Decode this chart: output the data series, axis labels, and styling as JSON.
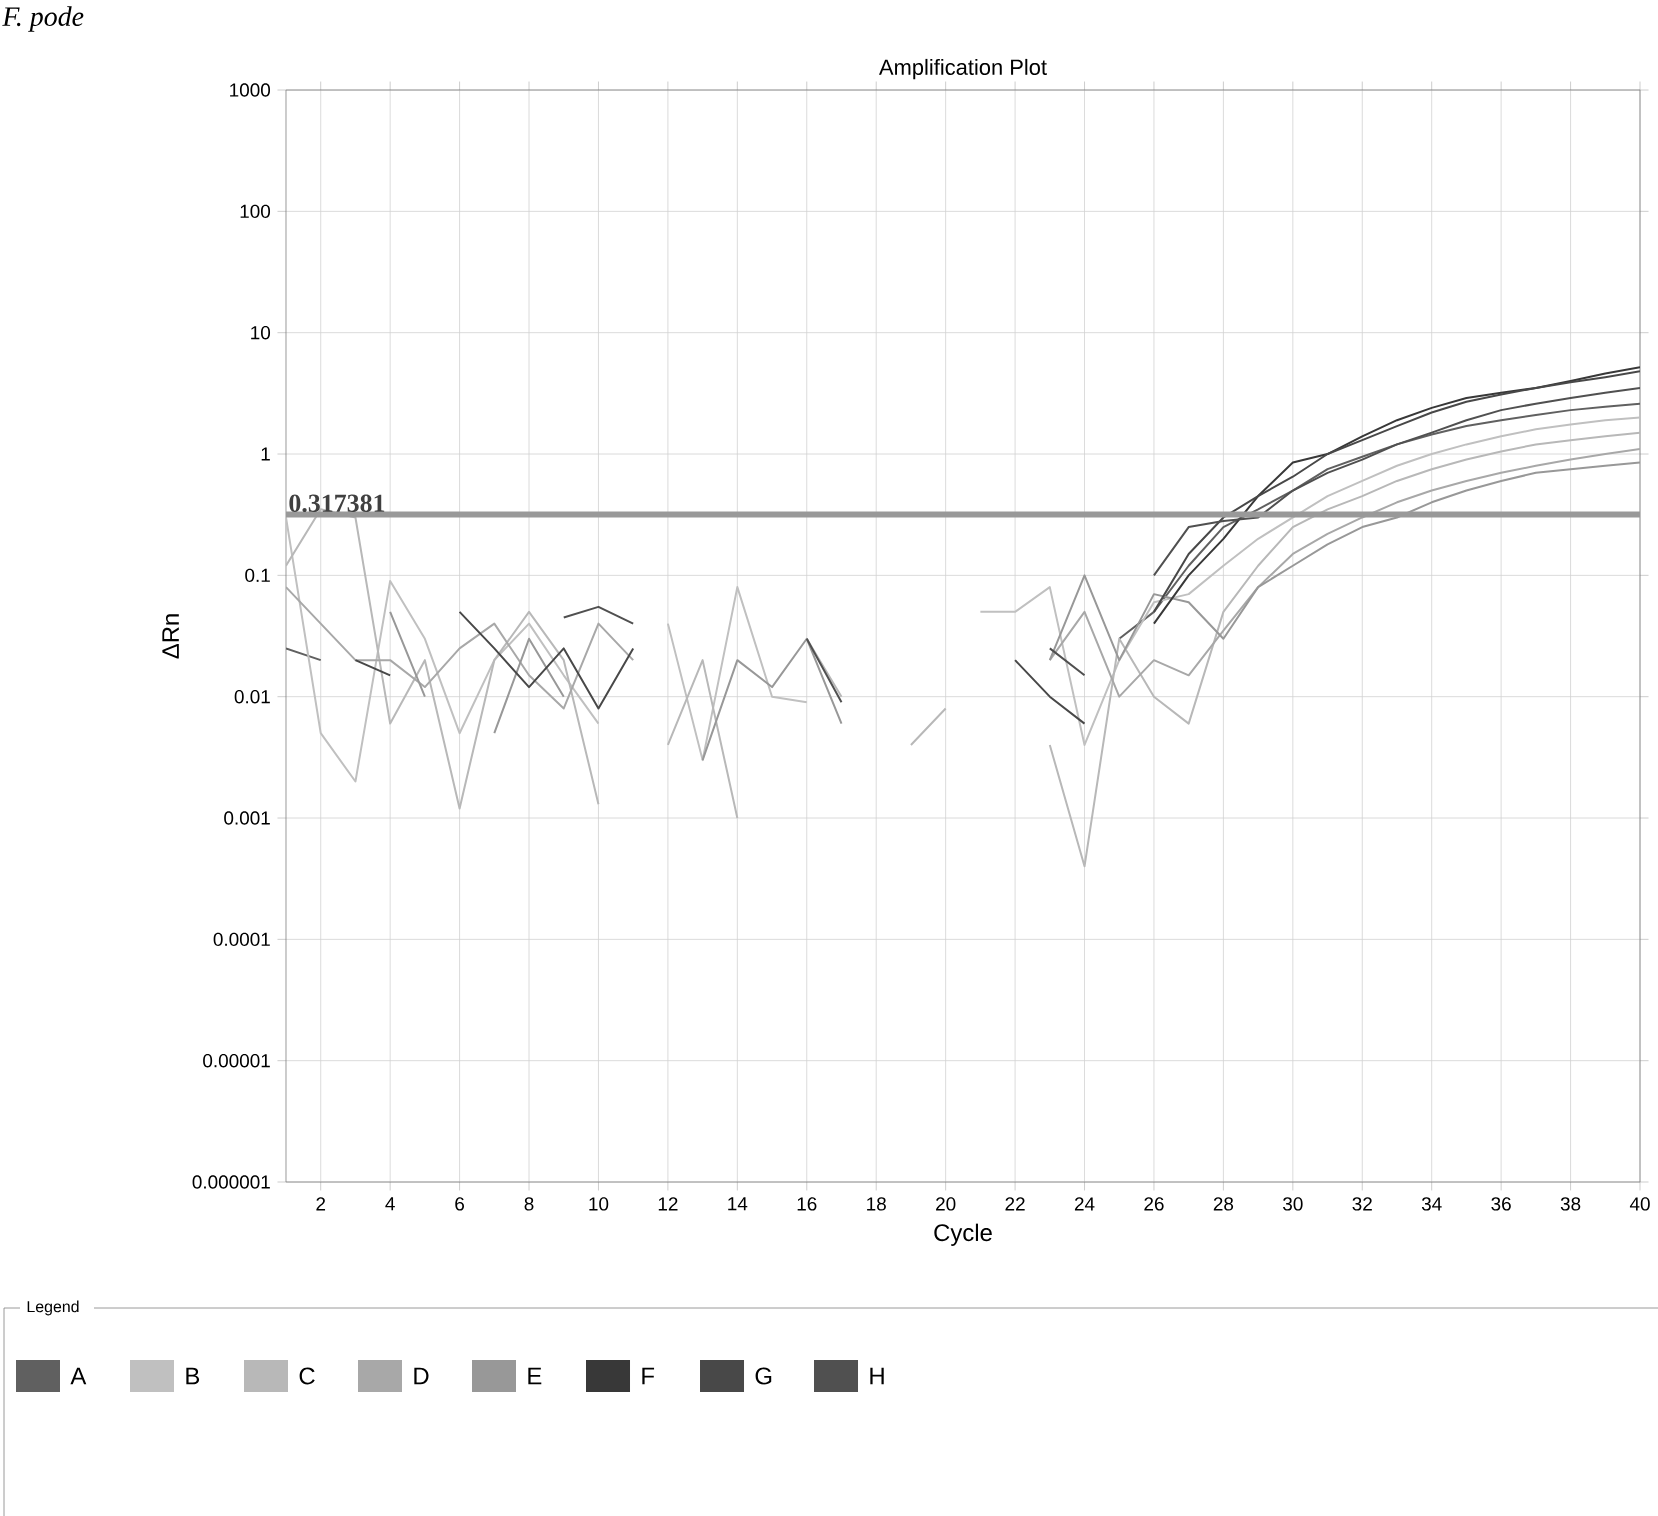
{
  "chart_data": {
    "type": "line",
    "title": "Amplification Plot",
    "xlabel": "Cycle",
    "ylabel": "ΔRn",
    "legend_title": "Legend",
    "annotations": [
      "*F. pode*"
    ],
    "x": [
      1,
      2,
      3,
      4,
      5,
      6,
      7,
      8,
      9,
      10,
      11,
      12,
      13,
      14,
      15,
      16,
      17,
      18,
      19,
      20,
      21,
      22,
      23,
      24,
      25,
      26,
      27,
      28,
      29,
      30,
      31,
      32,
      33,
      34,
      35,
      36,
      37,
      38,
      39,
      40
    ],
    "series": [
      {
        "name": "A",
        "color": "#606060",
        "values": [
          0.025,
          0.02,
          null,
          null,
          null,
          null,
          null,
          null,
          null,
          null,
          null,
          null,
          null,
          null,
          null,
          null,
          null,
          null,
          null,
          null,
          null,
          null,
          null,
          null,
          0.03,
          0.05,
          0.12,
          0.25,
          0.35,
          0.5,
          0.75,
          0.95,
          1.2,
          1.45,
          1.7,
          1.9,
          2.1,
          2.3,
          2.45,
          2.6
        ]
      },
      {
        "name": "B",
        "color": "#c0c0c0",
        "values": [
          0.3,
          0.005,
          0.002,
          0.09,
          0.03,
          0.005,
          0.02,
          0.04,
          0.015,
          0.006,
          null,
          0.04,
          0.003,
          0.08,
          0.01,
          0.009,
          null,
          null,
          null,
          null,
          0.05,
          0.05,
          0.08,
          0.004,
          0.02,
          0.06,
          0.07,
          0.12,
          0.2,
          0.3,
          0.45,
          0.6,
          0.8,
          1.0,
          1.2,
          1.4,
          1.6,
          1.75,
          1.9,
          2.0
        ]
      },
      {
        "name": "C",
        "color": "#b8b8b8",
        "values": [
          0.12,
          0.35,
          0.3,
          0.006,
          0.02,
          0.0012,
          0.02,
          0.05,
          0.02,
          0.0013,
          null,
          0.004,
          0.02,
          0.001,
          null,
          0.03,
          0.01,
          null,
          0.004,
          0.008,
          null,
          null,
          0.004,
          0.0004,
          0.03,
          0.01,
          0.006,
          0.05,
          0.12,
          0.25,
          0.35,
          0.45,
          0.6,
          0.75,
          0.9,
          1.05,
          1.2,
          1.3,
          1.4,
          1.5
        ]
      },
      {
        "name": "D",
        "color": "#a8a8a8",
        "values": [
          0.08,
          0.04,
          0.02,
          0.02,
          0.012,
          0.025,
          0.04,
          0.015,
          0.008,
          0.04,
          0.02,
          null,
          null,
          null,
          null,
          null,
          null,
          null,
          null,
          null,
          null,
          null,
          0.02,
          0.05,
          0.01,
          0.02,
          0.015,
          0.035,
          0.08,
          0.15,
          0.22,
          0.3,
          0.4,
          0.5,
          0.6,
          0.7,
          0.8,
          0.9,
          1.0,
          1.1
        ]
      },
      {
        "name": "E",
        "color": "#989898",
        "values": [
          null,
          null,
          null,
          0.05,
          0.01,
          null,
          0.005,
          0.03,
          0.01,
          null,
          null,
          null,
          0.003,
          0.02,
          0.012,
          0.03,
          0.006,
          null,
          null,
          null,
          null,
          null,
          0.02,
          0.1,
          0.02,
          0.07,
          0.06,
          0.03,
          0.08,
          0.12,
          0.18,
          0.25,
          0.3,
          0.4,
          0.5,
          0.6,
          0.7,
          0.75,
          0.8,
          0.85
        ]
      },
      {
        "name": "F",
        "color": "#383838",
        "values": [
          null,
          null,
          null,
          null,
          null,
          null,
          null,
          null,
          null,
          null,
          null,
          null,
          null,
          null,
          null,
          null,
          null,
          null,
          null,
          null,
          null,
          null,
          null,
          null,
          null,
          0.04,
          0.1,
          0.2,
          0.45,
          0.85,
          1.0,
          1.4,
          1.9,
          2.4,
          2.9,
          3.2,
          3.5,
          4.0,
          4.6,
          5.2
        ]
      },
      {
        "name": "G",
        "color": "#484848",
        "values": [
          null,
          null,
          0.02,
          0.015,
          null,
          0.05,
          0.025,
          0.012,
          0.025,
          0.008,
          0.025,
          null,
          null,
          null,
          null,
          null,
          null,
          null,
          null,
          null,
          null,
          0.02,
          0.01,
          0.006,
          null,
          0.05,
          0.15,
          0.3,
          0.45,
          0.65,
          1.0,
          1.3,
          1.7,
          2.2,
          2.7,
          3.1,
          3.5,
          3.9,
          4.3,
          4.8
        ]
      },
      {
        "name": "H",
        "color": "#505050",
        "values": [
          null,
          null,
          null,
          null,
          null,
          null,
          null,
          null,
          0.045,
          0.055,
          0.04,
          null,
          null,
          null,
          null,
          0.03,
          0.009,
          null,
          null,
          null,
          null,
          null,
          0.025,
          0.015,
          null,
          0.1,
          0.25,
          0.28,
          0.3,
          0.5,
          0.7,
          0.9,
          1.2,
          1.5,
          1.9,
          2.3,
          2.6,
          2.9,
          3.2,
          3.5
        ]
      }
    ],
    "xlim": [
      1,
      40
    ],
    "xticks": [
      2,
      4,
      6,
      8,
      10,
      12,
      14,
      16,
      18,
      20,
      22,
      24,
      26,
      28,
      30,
      32,
      34,
      36,
      38,
      40
    ],
    "ylim": [
      1e-06,
      1000
    ],
    "yticks": [
      {
        "value": 1e-06,
        "label": "0.000001"
      },
      {
        "value": 1e-05,
        "label": "0.00001"
      },
      {
        "value": 0.0001,
        "label": "0.0001"
      },
      {
        "value": 0.001,
        "label": "0.001"
      },
      {
        "value": 0.01,
        "label": "0.01"
      },
      {
        "value": 0.1,
        "label": "0.1"
      },
      {
        "value": 1,
        "label": "1"
      },
      {
        "value": 10,
        "label": "10"
      },
      {
        "value": 100,
        "label": "100"
      },
      {
        "value": 1000,
        "label": "1000"
      }
    ],
    "log": "y",
    "grid": true,
    "legend": "bottom",
    "marker": "none",
    "line_style": "solid",
    "ref_lines": [
      {
        "axis": "y",
        "value": 0.317381,
        "label": "0.317381",
        "color": "#999999"
      }
    ]
  }
}
